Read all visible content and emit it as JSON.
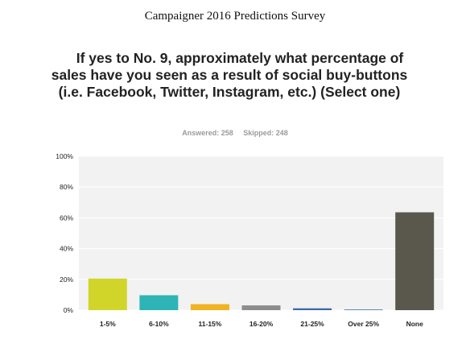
{
  "header": {
    "doc_title": "Campaigner 2016 Predictions Survey",
    "question": "If yes to No. 9, approximately what percentage of sales have you seen as a result of social buy-buttons (i.e. Facebook, Twitter, Instagram, etc.) (Select one)",
    "answered": "Answered: 258",
    "skipped": "Skipped: 248"
  },
  "chart_data": {
    "type": "bar",
    "categories": [
      "1-5%",
      "6-10%",
      "11-15%",
      "16-20%",
      "21-25%",
      "Over 25%",
      "None"
    ],
    "values": [
      20.5,
      9.7,
      3.9,
      3.1,
      1.2,
      0.4,
      63.6
    ],
    "colors": [
      "#d1d52a",
      "#2eb4b4",
      "#f0b323",
      "#8d8d8d",
      "#3b6aa8",
      "#3b6aa8",
      "#5a584c"
    ],
    "ylim": [
      0,
      100
    ],
    "yticks": [
      "0%",
      "20%",
      "40%",
      "60%",
      "80%",
      "100%"
    ],
    "ytick_values": [
      0,
      20,
      40,
      60,
      80,
      100
    ],
    "grid": true,
    "plot_background": "#f2f2f2"
  }
}
